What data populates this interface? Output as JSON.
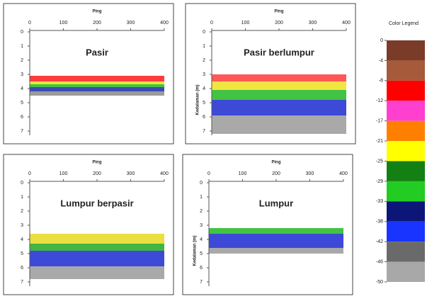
{
  "chart_data": [
    {
      "type": "echogram",
      "title": "Pasir",
      "xlabel": "Ping",
      "xlim": [
        0,
        400
      ],
      "xticks": [
        0,
        100,
        200,
        300,
        400
      ],
      "ylim": [
        0,
        7
      ],
      "yticks": [
        0,
        1,
        2,
        3,
        4,
        5,
        6,
        7
      ],
      "layers": [
        {
          "color": "#ff1a1a",
          "depth": [
            3.1,
            3.5
          ]
        },
        {
          "color": "#e8e020",
          "depth": [
            3.5,
            3.7
          ]
        },
        {
          "color": "#22b822",
          "depth": [
            3.7,
            3.9
          ]
        },
        {
          "color": "#1a2aa8",
          "depth": [
            3.9,
            4.2
          ]
        },
        {
          "color": "#8a8a8a",
          "depth": [
            4.2,
            4.5
          ]
        }
      ]
    },
    {
      "type": "echogram",
      "title": "Pasir berlumpur",
      "xlabel": "Ping",
      "ylabel": "Kedalaman (m)",
      "xlim": [
        0,
        400
      ],
      "xticks": [
        0,
        100,
        200,
        300,
        400
      ],
      "ylim": [
        0,
        7
      ],
      "yticks": [
        0,
        1,
        2,
        3,
        4,
        5,
        6,
        7
      ],
      "layers": [
        {
          "color": "#ff3a3a",
          "depth": [
            3.0,
            3.5
          ]
        },
        {
          "color": "#f0e020",
          "depth": [
            3.5,
            4.1
          ]
        },
        {
          "color": "#22b822",
          "depth": [
            4.1,
            4.8
          ]
        },
        {
          "color": "#1a2ad0",
          "depth": [
            4.8,
            5.9
          ]
        },
        {
          "color": "#9a9a9a",
          "depth": [
            5.9,
            7.2
          ]
        }
      ]
    },
    {
      "type": "echogram",
      "title": "Lumpur berpasir",
      "xlabel": "Ping",
      "xlim": [
        0,
        400
      ],
      "xticks": [
        0,
        100,
        200,
        300,
        400
      ],
      "ylim": [
        0,
        7
      ],
      "yticks": [
        0,
        1,
        2,
        3,
        4,
        5,
        6,
        7
      ],
      "layers": [
        {
          "color": "#e8d820",
          "depth": [
            3.6,
            4.3
          ]
        },
        {
          "color": "#22a822",
          "depth": [
            4.3,
            4.8
          ]
        },
        {
          "color": "#1a2ad0",
          "depth": [
            4.8,
            5.9
          ]
        },
        {
          "color": "#9a9a9a",
          "depth": [
            5.9,
            6.8
          ]
        }
      ]
    },
    {
      "type": "echogram",
      "title": "Lumpur",
      "xlabel": "Ping",
      "ylabel": "Kedalaman (m)",
      "xlim": [
        0,
        400
      ],
      "xticks": [
        0,
        100,
        200,
        300,
        400
      ],
      "ylim": [
        0,
        7
      ],
      "yticks": [
        0,
        1,
        2,
        3,
        4,
        5,
        6,
        7
      ],
      "layers": [
        {
          "color": "#22b822",
          "depth": [
            3.2,
            3.6
          ]
        },
        {
          "color": "#1a2ad0",
          "depth": [
            3.6,
            4.6
          ]
        },
        {
          "color": "#9a9a9a",
          "depth": [
            4.6,
            5.0
          ]
        }
      ]
    },
    {
      "type": "colorbar",
      "title": "Color Legend",
      "ticks": [
        0,
        -4,
        -8,
        -12,
        -17,
        -21,
        -25,
        -29,
        -33,
        -38,
        -42,
        -46,
        -50
      ],
      "colors": [
        "#7a3b28",
        "#a65a3a",
        "#ff0000",
        "#ff3fd0",
        "#ff8000",
        "#ffff00",
        "#138013",
        "#22cc22",
        "#0c1678",
        "#1a34ff",
        "#6a6a6a",
        "#a8a8a8"
      ]
    }
  ]
}
